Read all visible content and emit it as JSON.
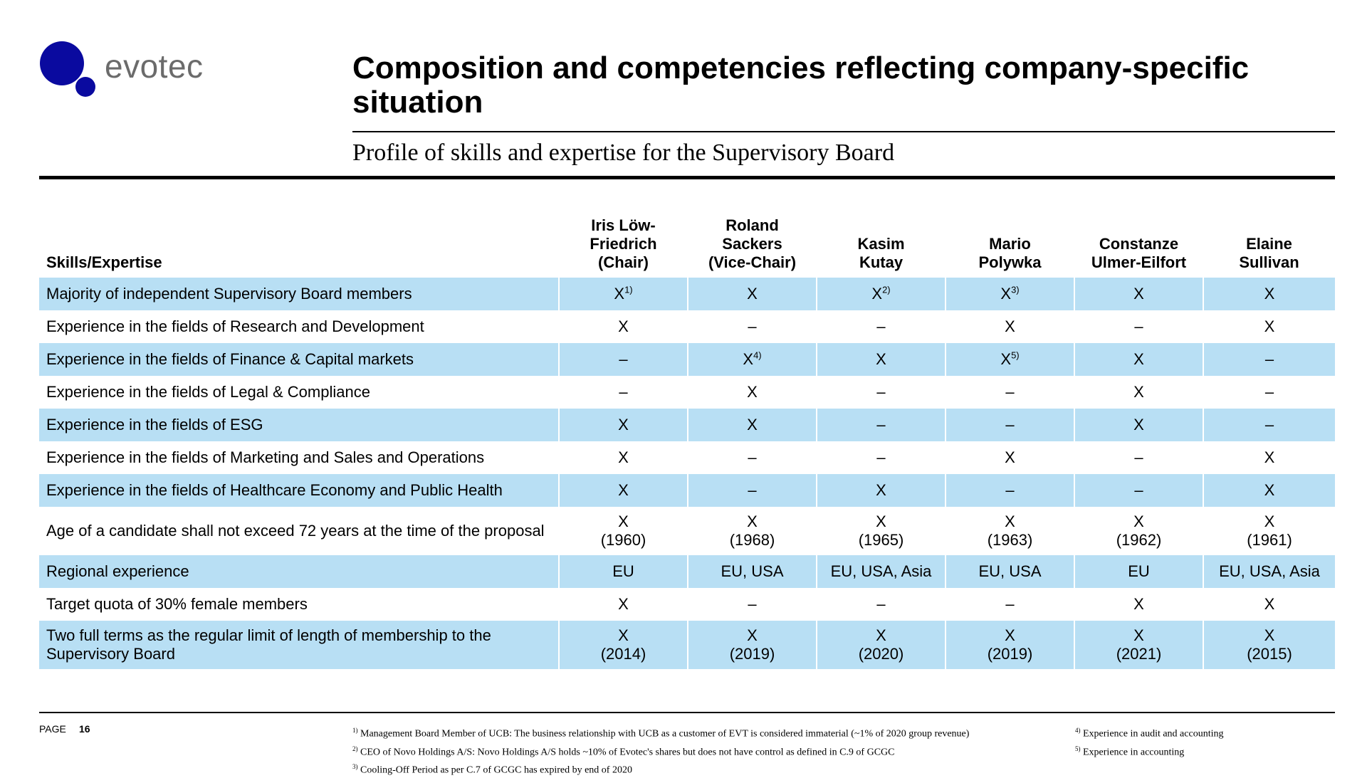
{
  "logo": {
    "text": "evotec",
    "color_primary": "#0a0a9f",
    "text_color": "#6b6b6b"
  },
  "title": "Composition and competencies reflecting company-specific situation",
  "subtitle": "Profile of skills and expertise for the Supervisory Board",
  "table": {
    "header_label": "Skills/Expertise",
    "band_color": "#b8dff4",
    "members": [
      {
        "lines": [
          "Iris Löw-",
          "Friedrich",
          "(Chair)"
        ]
      },
      {
        "lines": [
          "Roland",
          "Sackers",
          "(Vice-Chair)"
        ]
      },
      {
        "lines": [
          "Kasim",
          "Kutay"
        ]
      },
      {
        "lines": [
          "Mario",
          "Polywka"
        ]
      },
      {
        "lines": [
          "Constanze",
          "Ulmer-Eilfort"
        ]
      },
      {
        "lines": [
          "Elaine",
          "Sullivan"
        ]
      }
    ],
    "rows": [
      {
        "label": "Majority of independent Supervisory Board members",
        "height": 46,
        "cells": [
          {
            "v": [
              "X"
            ],
            "sup": "1)"
          },
          {
            "v": [
              "X"
            ]
          },
          {
            "v": [
              "X"
            ],
            "sup": "2)"
          },
          {
            "v": [
              "X"
            ],
            "sup": "3)"
          },
          {
            "v": [
              "X"
            ]
          },
          {
            "v": [
              "X"
            ]
          }
        ]
      },
      {
        "label": "Experience in the fields of Research and Development",
        "height": 46,
        "cells": [
          {
            "v": [
              "X"
            ]
          },
          {
            "v": [
              "–"
            ]
          },
          {
            "v": [
              "–"
            ]
          },
          {
            "v": [
              "X"
            ]
          },
          {
            "v": [
              "–"
            ]
          },
          {
            "v": [
              "X"
            ]
          }
        ]
      },
      {
        "label": "Experience in the fields of Finance & Capital markets",
        "height": 46,
        "cells": [
          {
            "v": [
              "–"
            ]
          },
          {
            "v": [
              "X"
            ],
            "sup": "4)"
          },
          {
            "v": [
              "X"
            ]
          },
          {
            "v": [
              "X"
            ],
            "sup": "5)"
          },
          {
            "v": [
              "X"
            ]
          },
          {
            "v": [
              "–"
            ]
          }
        ]
      },
      {
        "label": "Experience in the fields of Legal & Compliance",
        "height": 46,
        "cells": [
          {
            "v": [
              "–"
            ]
          },
          {
            "v": [
              "X"
            ]
          },
          {
            "v": [
              "–"
            ]
          },
          {
            "v": [
              "–"
            ]
          },
          {
            "v": [
              "X"
            ]
          },
          {
            "v": [
              "–"
            ]
          }
        ]
      },
      {
        "label": "Experience in the fields of ESG",
        "height": 46,
        "cells": [
          {
            "v": [
              "X"
            ]
          },
          {
            "v": [
              "X"
            ]
          },
          {
            "v": [
              "–"
            ]
          },
          {
            "v": [
              "–"
            ]
          },
          {
            "v": [
              "X"
            ]
          },
          {
            "v": [
              "–"
            ]
          }
        ]
      },
      {
        "label": "Experience in the fields of Marketing and Sales and Operations",
        "height": 46,
        "cells": [
          {
            "v": [
              "X"
            ]
          },
          {
            "v": [
              "–"
            ]
          },
          {
            "v": [
              "–"
            ]
          },
          {
            "v": [
              "X"
            ]
          },
          {
            "v": [
              "–"
            ]
          },
          {
            "v": [
              "X"
            ]
          }
        ]
      },
      {
        "label": "Experience in the fields of Healthcare Economy and Public Health",
        "height": 46,
        "cells": [
          {
            "v": [
              "X"
            ]
          },
          {
            "v": [
              "–"
            ]
          },
          {
            "v": [
              "X"
            ]
          },
          {
            "v": [
              "–"
            ]
          },
          {
            "v": [
              "–"
            ]
          },
          {
            "v": [
              "X"
            ]
          }
        ]
      },
      {
        "label": "Age of a candidate shall not exceed 72 years at the time of the proposal",
        "height": 68,
        "cells": [
          {
            "v": [
              "X",
              "(1960)"
            ]
          },
          {
            "v": [
              "X",
              "(1968)"
            ]
          },
          {
            "v": [
              "X",
              "(1965)"
            ]
          },
          {
            "v": [
              "X",
              "(1963)"
            ]
          },
          {
            "v": [
              "X",
              "(1962)"
            ]
          },
          {
            "v": [
              "X",
              "(1961)"
            ]
          }
        ]
      },
      {
        "label": "Regional experience",
        "height": 46,
        "cells": [
          {
            "v": [
              "EU"
            ]
          },
          {
            "v": [
              "EU, USA"
            ]
          },
          {
            "v": [
              "EU, USA, Asia"
            ]
          },
          {
            "v": [
              "EU, USA"
            ]
          },
          {
            "v": [
              "EU"
            ]
          },
          {
            "v": [
              "EU, USA, Asia"
            ]
          }
        ]
      },
      {
        "label": "Target quota of 30% female members",
        "height": 46,
        "cells": [
          {
            "v": [
              "X"
            ]
          },
          {
            "v": [
              "–"
            ]
          },
          {
            "v": [
              "–"
            ]
          },
          {
            "v": [
              "–"
            ]
          },
          {
            "v": [
              "X"
            ]
          },
          {
            "v": [
              "X"
            ]
          }
        ]
      },
      {
        "label": "Two full terms as the regular limit of length of membership to the Supervisory Board",
        "height": 68,
        "cells": [
          {
            "v": [
              "X",
              "(2014)"
            ]
          },
          {
            "v": [
              "X",
              "(2019)"
            ]
          },
          {
            "v": [
              "X",
              "(2020)"
            ]
          },
          {
            "v": [
              "X",
              "(2019)"
            ]
          },
          {
            "v": [
              "X",
              "(2021)"
            ]
          },
          {
            "v": [
              "X",
              "(2015)"
            ]
          }
        ]
      }
    ]
  },
  "footer": {
    "page_label": "PAGE",
    "page_number": "16",
    "notes_left": [
      {
        "mark": "1)",
        "text": "Management Board Member of UCB: The business relationship with UCB as a customer of EVT is considered immaterial (~1% of 2020 group revenue)"
      },
      {
        "mark": "2)",
        "text": "CEO of Novo Holdings A/S: Novo Holdings A/S holds ~10% of Evotec's shares but does not have control as defined in C.9 of GCGC"
      },
      {
        "mark": "3)",
        "text": "Cooling-Off Period as per C.7 of GCGC has expired by end of 2020"
      }
    ],
    "notes_right": [
      {
        "mark": "4)",
        "text": "Experience in audit and accounting"
      },
      {
        "mark": "5)",
        "text": "Experience in accounting"
      }
    ]
  }
}
